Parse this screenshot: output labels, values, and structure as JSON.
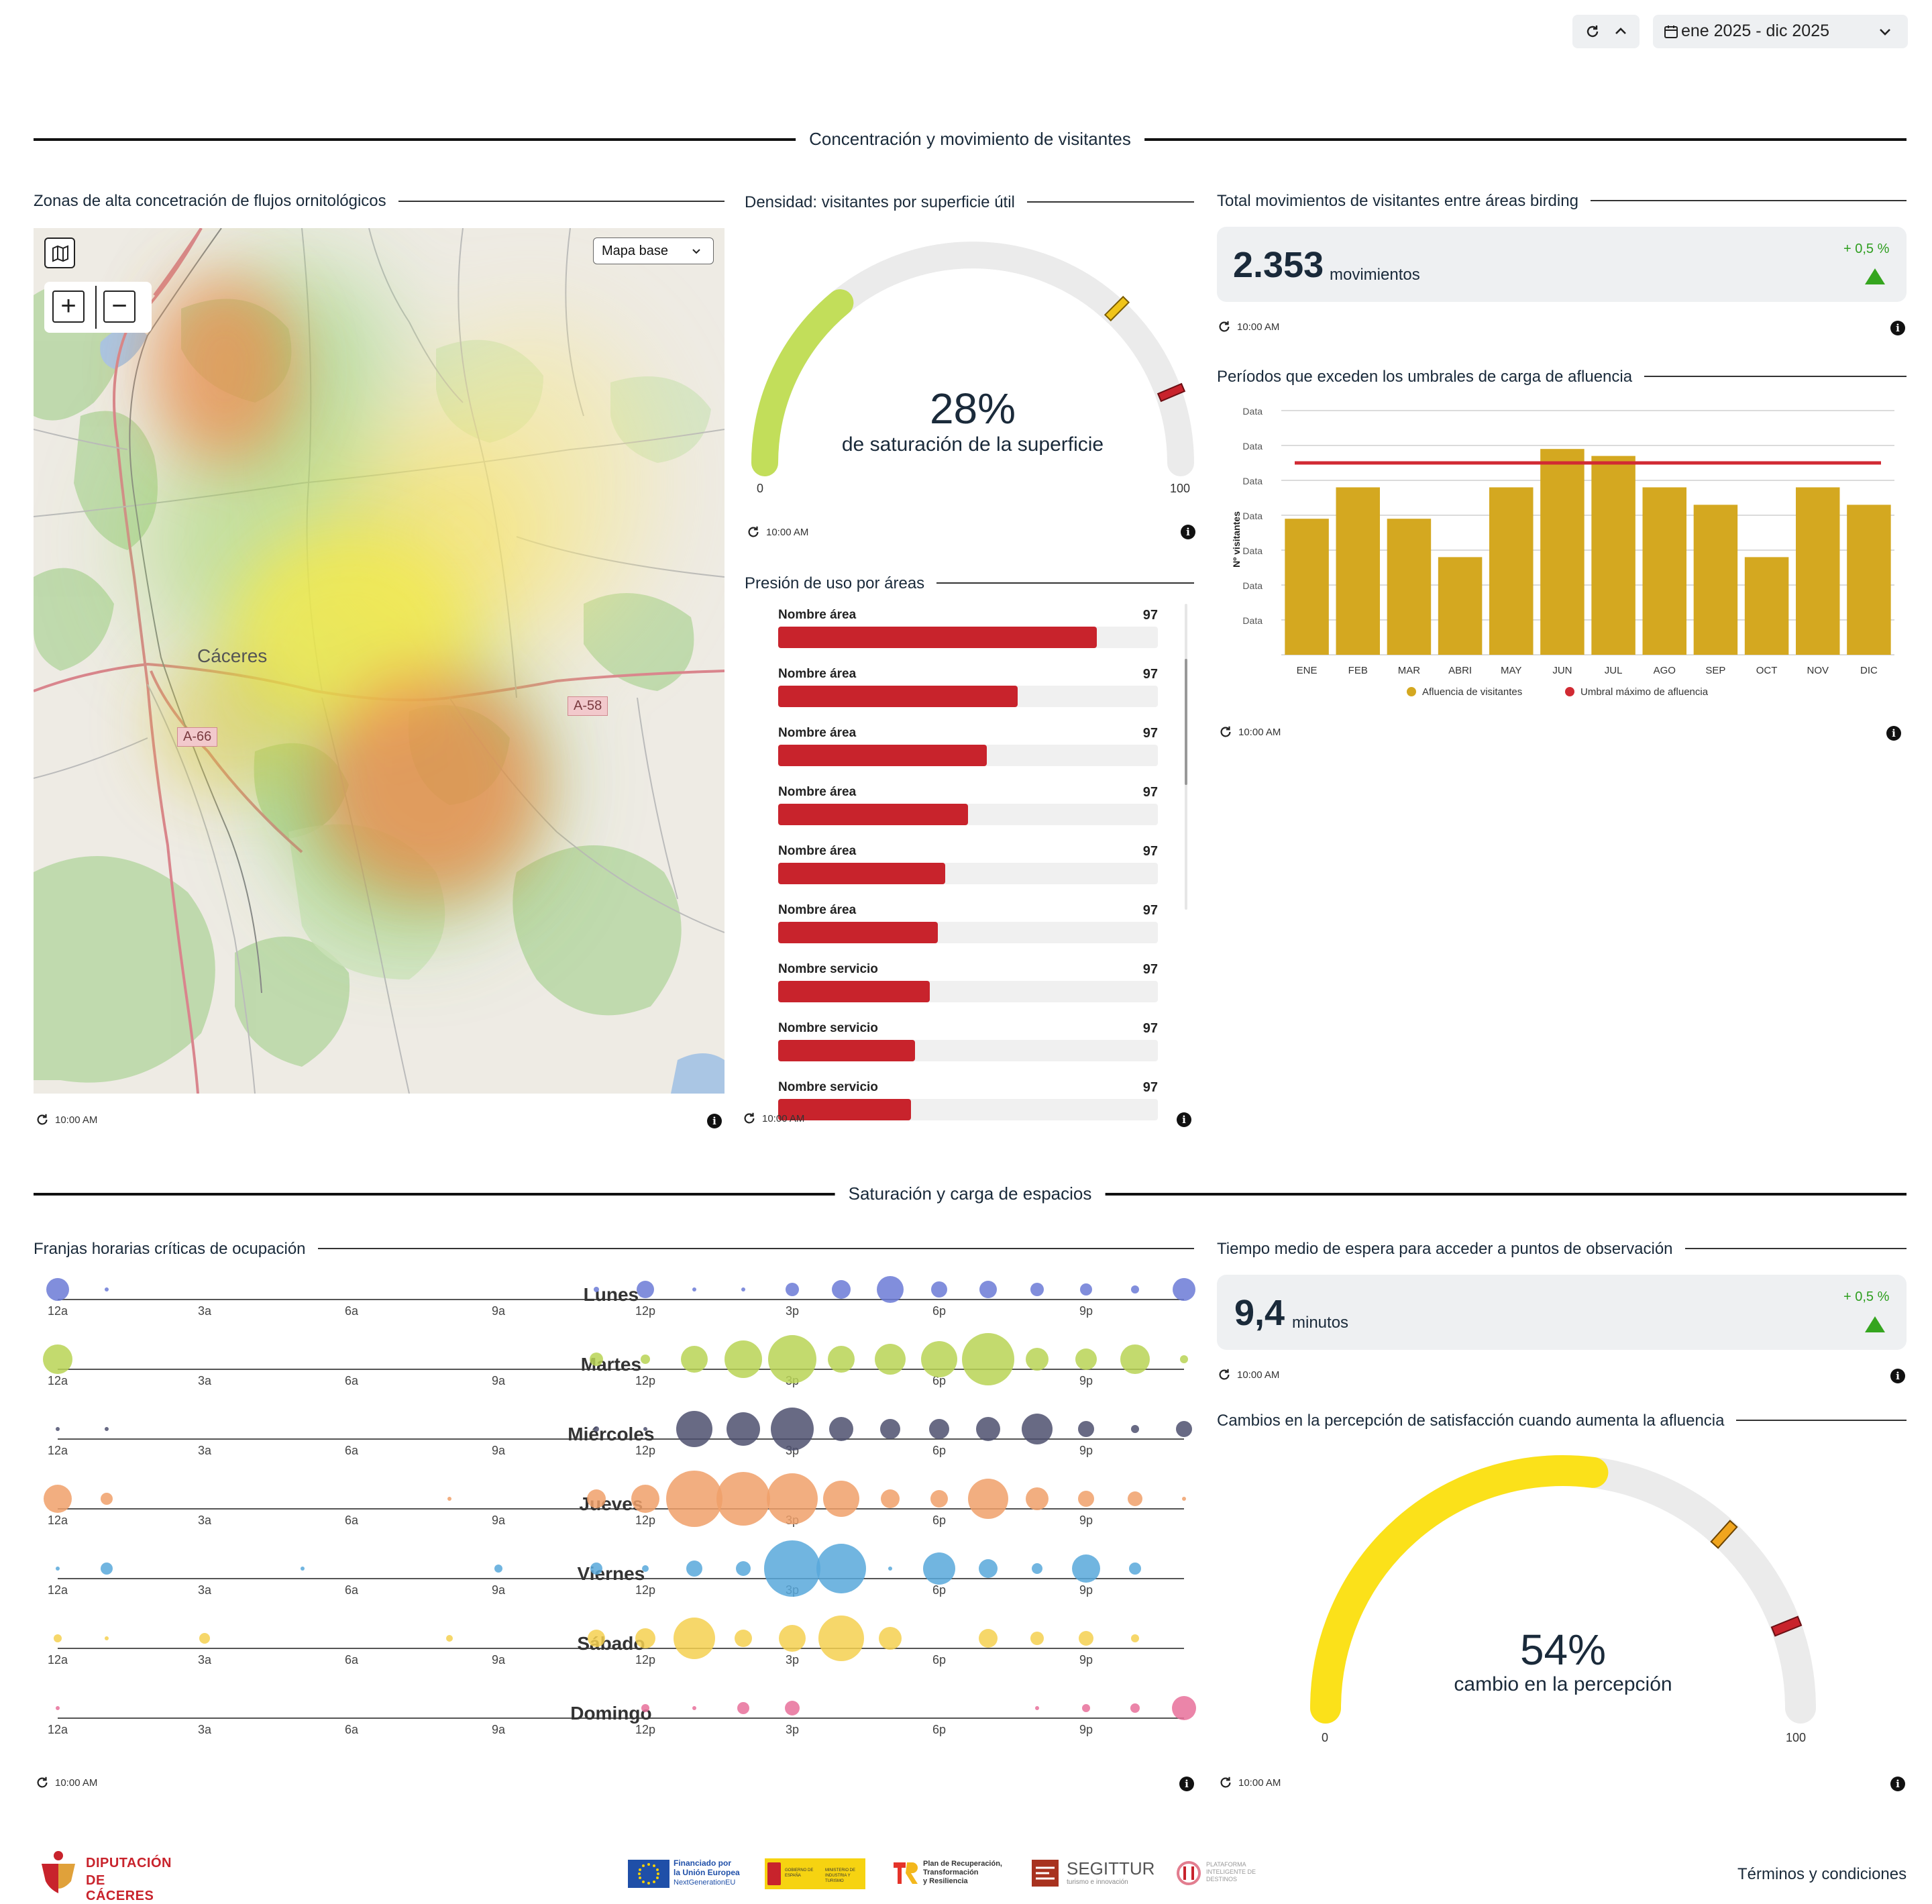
{
  "toolbar": {
    "date_range": "ene 2025 - dic 2025"
  },
  "sections": {
    "concentration": "Concentración y movimiento de visitantes",
    "saturation": "Saturación y carga de espacios"
  },
  "timestamp": "10:00 AM",
  "map_card": {
    "title": "Zonas de alta concetración de flujos ornitológicos",
    "basemap_label": "Mapa base",
    "city": "Cáceres",
    "road_a58": "A-58",
    "road_a66": "A-66"
  },
  "density_card": {
    "title": "Densidad: visitantes por superficie útil",
    "value": "28%",
    "subtitle": "de saturación de la superficie",
    "percent": 28,
    "min": "0",
    "max": "100"
  },
  "pressure_card": {
    "title": "Presión de uso por áreas",
    "items": [
      {
        "label": "Nombre área",
        "value": "97",
        "fill": 0.84
      },
      {
        "label": "Nombre área",
        "value": "97",
        "fill": 0.63
      },
      {
        "label": "Nombre área",
        "value": "97",
        "fill": 0.55
      },
      {
        "label": "Nombre área",
        "value": "97",
        "fill": 0.5
      },
      {
        "label": "Nombre área",
        "value": "97",
        "fill": 0.44
      },
      {
        "label": "Nombre área",
        "value": "97",
        "fill": 0.42
      },
      {
        "label": "Nombre servicio",
        "value": "97",
        "fill": 0.4
      },
      {
        "label": "Nombre servicio",
        "value": "97",
        "fill": 0.36
      },
      {
        "label": "Nombre servicio",
        "value": "97",
        "fill": 0.35
      }
    ]
  },
  "movements_card": {
    "title": "Total movimientos de visitantes entre áreas birding",
    "value": "2.353",
    "unit": "movimientos",
    "delta": "+ 0,5 %"
  },
  "periods_card": {
    "title": "Períodos que exceden los umbrales de carga de afluencia"
  },
  "chart_data": {
    "type": "bar",
    "categories": [
      "ENE",
      "FEB",
      "MAR",
      "ABRI",
      "MAY",
      "JUN",
      "JUL",
      "AGO",
      "SEP",
      "OCT",
      "NOV",
      "DIC"
    ],
    "series": [
      {
        "name": "Afluencia de visitantes",
        "values": [
          3.9,
          4.8,
          3.9,
          2.8,
          4.8,
          5.9,
          5.7,
          4.8,
          4.3,
          2.8,
          4.8,
          4.3
        ],
        "color": "#d4a820"
      },
      {
        "name": "Umbral máximo de afluencia",
        "values": [
          5.5,
          5.5,
          5.5,
          5.5,
          5.5,
          5.5,
          5.5,
          5.5,
          5.5,
          5.5,
          5.5,
          5.5
        ],
        "color": "#d12a33"
      }
    ],
    "ylabel": "Nº visitantes",
    "ytick_labels": [
      "Data",
      "Data",
      "Data",
      "Data",
      "Data",
      "Data",
      "Data"
    ],
    "ylim": [
      0,
      7
    ],
    "grid": true,
    "legend": "bottom"
  },
  "hours_card": {
    "title": "Franjas horarias críticas de ocupación",
    "hour_labels": [
      "12a",
      "3a",
      "6a",
      "9a",
      "12p",
      "3p",
      "6p",
      "9p"
    ],
    "days": [
      {
        "name": "Lunes",
        "color": "#6b7ad6",
        "sizes": [
          17,
          3,
          0,
          0,
          0,
          0,
          0,
          0,
          0,
          0,
          0,
          4,
          13,
          3,
          3,
          10,
          14,
          20,
          12,
          13,
          10,
          9,
          6,
          17
        ]
      },
      {
        "name": "Martes",
        "color": "#b8d455",
        "sizes": [
          22,
          0,
          0,
          0,
          0,
          0,
          0,
          0,
          0,
          0,
          0,
          10,
          7,
          20,
          28,
          36,
          20,
          23,
          27,
          39,
          17,
          16,
          22,
          6
        ]
      },
      {
        "name": "Miércoles",
        "color": "#4d506e",
        "sizes": [
          3,
          3,
          0,
          0,
          0,
          0,
          0,
          0,
          0,
          0,
          0,
          4,
          3,
          27,
          25,
          32,
          18,
          15,
          15,
          18,
          23,
          12,
          6,
          12
        ]
      },
      {
        "name": "Jueves",
        "color": "#f0a06a",
        "sizes": [
          21,
          9,
          0,
          0,
          0,
          0,
          0,
          0,
          3,
          0,
          0,
          14,
          21,
          42,
          40,
          38,
          27,
          14,
          13,
          30,
          17,
          12,
          11,
          3
        ]
      },
      {
        "name": "Viernes",
        "color": "#58a8da",
        "sizes": [
          3,
          9,
          0,
          0,
          0,
          3,
          0,
          0,
          0,
          6,
          0,
          9,
          5,
          12,
          11,
          42,
          37,
          3,
          24,
          14,
          8,
          21,
          9,
          0
        ]
      },
      {
        "name": "Sábado",
        "color": "#f5d050",
        "sizes": [
          6,
          3,
          0,
          8,
          0,
          0,
          0,
          0,
          5,
          0,
          0,
          13,
          15,
          31,
          13,
          20,
          34,
          17,
          0,
          14,
          10,
          11,
          6,
          0
        ]
      },
      {
        "name": "Domingo",
        "color": "#e8709a",
        "sizes": [
          3,
          0,
          0,
          0,
          0,
          0,
          0,
          0,
          0,
          0,
          0,
          0,
          6,
          3,
          9,
          11,
          0,
          0,
          0,
          0,
          3,
          6,
          7,
          18
        ]
      }
    ]
  },
  "wait_card": {
    "title": "Tiempo medio de espera para acceder a puntos de observación",
    "value": "9,4",
    "unit": "minutos",
    "delta": "+ 0,5 %"
  },
  "perception_card": {
    "title": "Cambios en la percepción de satisfacción cuando aumenta la afluencia",
    "value": "54%",
    "subtitle": "cambio en la percepción",
    "percent": 54,
    "min": "0",
    "max": "100"
  },
  "footer": {
    "logo_line1": "DIPUTACIÓN",
    "logo_line2": "DE CÁCERES",
    "eu_line1": "Financiado por",
    "eu_line2": "la Unión Europea",
    "eu_line3": "NextGenerationEU",
    "gob_text1": "GOBIERNO DE ESPAÑA",
    "gob_text2": "MINISTERIO DE INDUSTRIA Y TURISMO",
    "prtr_line1": "Plan de Recuperación,",
    "prtr_line2": "Transformación",
    "prtr_line3": "y Resiliencia",
    "segittur": "SEGITTUR",
    "segittur_sub": "turismo e innovación",
    "pid_line1": "PLATAFORMA",
    "pid_line2": "INTELIGENTE DE",
    "pid_line3": "DESTINOS",
    "terms": "Términos y condiciones"
  }
}
